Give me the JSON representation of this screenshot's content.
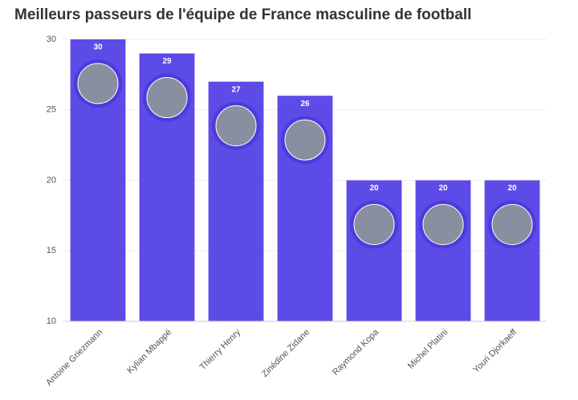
{
  "chart_data": {
    "type": "bar",
    "title": "Meilleurs passeurs de l'équipe de France masculine de football",
    "categories": [
      "Antoine Griezmann",
      "Kylian Mbappé",
      "Thierry Henry",
      "Zinédine Zidane",
      "Raymond Kopa",
      "Michel Platini",
      "Youri Djorkaeff"
    ],
    "values": [
      30,
      29,
      27,
      26,
      20,
      20,
      20
    ],
    "color": "#5d4be8",
    "ylim": [
      10,
      30
    ],
    "yticks": [
      10,
      15,
      20,
      25,
      30
    ],
    "grid": true
  }
}
